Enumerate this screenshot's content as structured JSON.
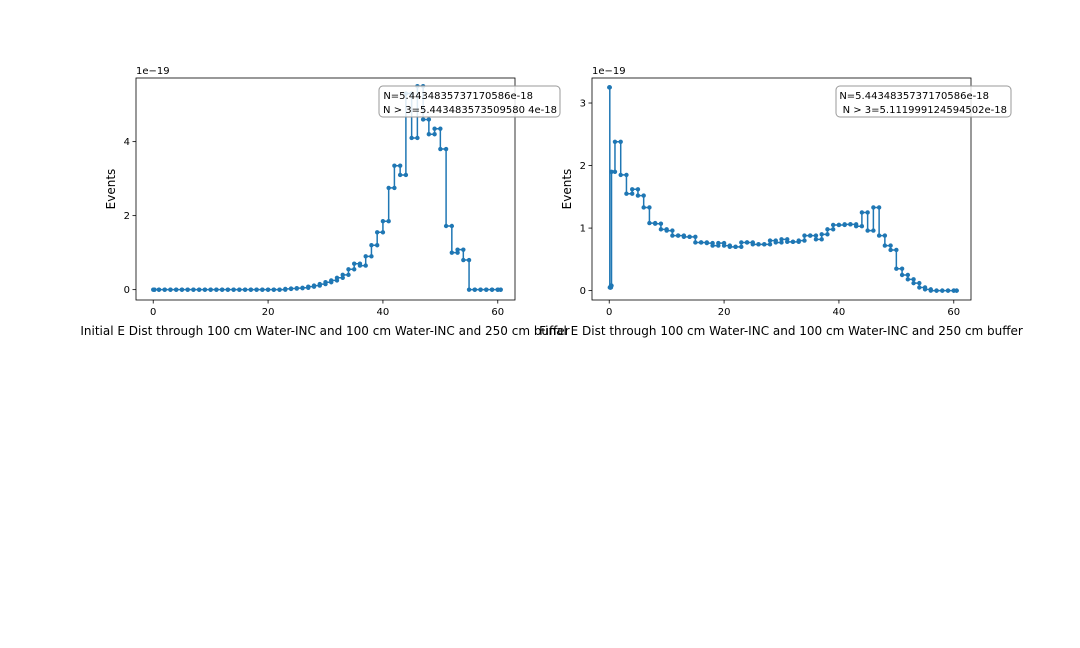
{
  "figure": {
    "background": "#ffffff",
    "series_color": "#1f77b4"
  },
  "chart_data": [
    {
      "type": "line",
      "step": "steps-post",
      "marker": "dot",
      "title": "",
      "xlabel": "Initial E Dist through 100 cm Water-INC and 100 cm Water-INC and 250 cm buffer",
      "ylabel": "Events",
      "offset_text": "1e−19",
      "xlim": [
        -3,
        63
      ],
      "ylim": [
        -0.28,
        5.72
      ],
      "xticks": [
        0,
        20,
        40,
        60
      ],
      "yticks": [
        0,
        2,
        4
      ],
      "grid": false,
      "legend": "upper right",
      "annotation": [
        "N=5.4434835737170586e-18",
        "N > 3=5.443483573509580 4e-18"
      ],
      "x": [
        0,
        0.2,
        1,
        2,
        3,
        4,
        5,
        6,
        7,
        8,
        9,
        10,
        11,
        12,
        13,
        14,
        15,
        16,
        17,
        18,
        19,
        20,
        21,
        22,
        23,
        24,
        25,
        26,
        27,
        28,
        29,
        30,
        31,
        32,
        33,
        34,
        35,
        36,
        37,
        38,
        39,
        40,
        41,
        42,
        43,
        44,
        45,
        46,
        47,
        48,
        49,
        50,
        51,
        52,
        53,
        54,
        55,
        56,
        57,
        58,
        59,
        60,
        60.5
      ],
      "y": [
        0,
        0,
        0,
        0,
        0,
        0,
        0,
        0,
        0,
        0,
        0,
        0,
        0,
        0,
        0,
        0,
        0,
        0,
        0,
        0,
        0,
        0,
        0,
        0,
        0.02,
        0.03,
        0.04,
        0.05,
        0.08,
        0.11,
        0.15,
        0.2,
        0.25,
        0.32,
        0.4,
        0.55,
        0.7,
        0.65,
        0.9,
        1.2,
        1.55,
        1.85,
        2.75,
        3.35,
        3.1,
        5.3,
        4.1,
        5.5,
        4.6,
        4.2,
        4.35,
        3.8,
        1.72,
        1.0,
        1.08,
        0.8,
        0,
        0,
        0,
        0,
        0,
        0,
        0
      ]
    },
    {
      "type": "line",
      "step": "steps-post",
      "marker": "dot",
      "title": "",
      "xlabel": "Final E Dist through 100 cm Water-INC and 100 cm Water-INC and 250 cm buffer",
      "ylabel": "Events",
      "offset_text": "1e−19",
      "xlim": [
        -3,
        63
      ],
      "ylim": [
        -0.15,
        3.4
      ],
      "xticks": [
        0,
        20,
        40,
        60
      ],
      "yticks": [
        0,
        1,
        2,
        3
      ],
      "grid": false,
      "legend": "upper right",
      "annotation": [
        "N=5.4434835737170586e-18",
        "N > 3=5.111999124594502e-18"
      ],
      "x": [
        0,
        0.1,
        0.2,
        0.3,
        0.4,
        1,
        2,
        3,
        4,
        5,
        6,
        7,
        8,
        9,
        10,
        11,
        12,
        13,
        14,
        15,
        16,
        17,
        18,
        19,
        20,
        21,
        22,
        23,
        24,
        25,
        26,
        27,
        28,
        29,
        30,
        31,
        32,
        33,
        34,
        35,
        36,
        37,
        38,
        39,
        40,
        41,
        42,
        43,
        44,
        45,
        46,
        47,
        48,
        49,
        50,
        51,
        52,
        53,
        54,
        55,
        56,
        57,
        58,
        59,
        60,
        60.5
      ],
      "y": [
        3.25,
        0.05,
        0.05,
        0.08,
        1.9,
        2.38,
        1.85,
        1.55,
        1.62,
        1.52,
        1.33,
        1.08,
        1.07,
        0.98,
        0.96,
        0.88,
        0.88,
        0.86,
        0.86,
        0.77,
        0.77,
        0.76,
        0.72,
        0.76,
        0.72,
        0.7,
        0.7,
        0.77,
        0.77,
        0.74,
        0.74,
        0.74,
        0.8,
        0.77,
        0.82,
        0.78,
        0.78,
        0.8,
        0.88,
        0.88,
        0.82,
        0.9,
        0.98,
        1.05,
        1.05,
        1.06,
        1.06,
        1.03,
        1.25,
        0.96,
        1.33,
        0.88,
        0.72,
        0.65,
        0.35,
        0.25,
        0.18,
        0.12,
        0.05,
        0.02,
        0,
        0,
        0,
        0,
        0,
        0
      ]
    }
  ]
}
